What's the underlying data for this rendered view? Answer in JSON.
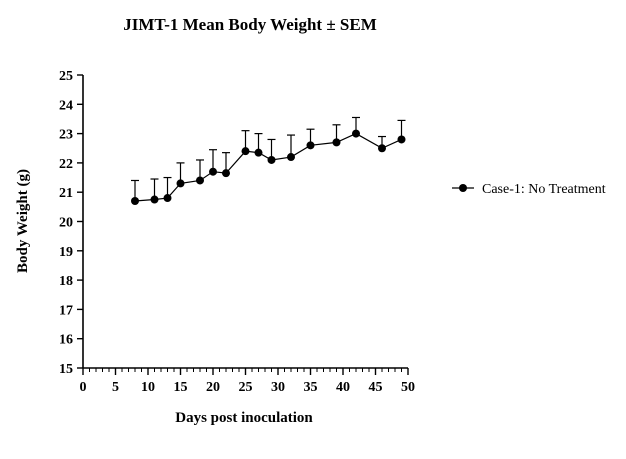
{
  "chart_data": {
    "type": "line",
    "title": "JIMT-1 Mean Body Weight ± SEM",
    "xlabel": "Days post inoculation",
    "ylabel": "Body Weight (g)",
    "xlim": [
      0,
      50
    ],
    "ylim": [
      15,
      25
    ],
    "x_ticks": [
      0,
      5,
      10,
      15,
      20,
      25,
      30,
      35,
      40,
      45,
      50
    ],
    "x_minor_step": 1,
    "y_ticks": [
      15,
      16,
      17,
      18,
      19,
      20,
      21,
      22,
      23,
      24,
      25
    ],
    "grid": false,
    "legend_position": "right",
    "error_bars": "upper only (SEM)",
    "series": [
      {
        "name": "Case-1: No Treatment",
        "color": "#000000",
        "marker": "filled-circle",
        "x": [
          8,
          11,
          13,
          15,
          18,
          20,
          22,
          25,
          27,
          29,
          32,
          35,
          39,
          42,
          46,
          49
        ],
        "y": [
          20.7,
          20.75,
          20.8,
          21.3,
          21.4,
          21.7,
          21.65,
          22.4,
          22.35,
          22.1,
          22.2,
          22.6,
          22.7,
          23.0,
          22.5,
          22.8
        ],
        "sem": [
          0.7,
          0.7,
          0.7,
          0.7,
          0.7,
          0.75,
          0.7,
          0.7,
          0.65,
          0.7,
          0.75,
          0.55,
          0.6,
          0.55,
          0.4,
          0.65
        ]
      }
    ]
  }
}
